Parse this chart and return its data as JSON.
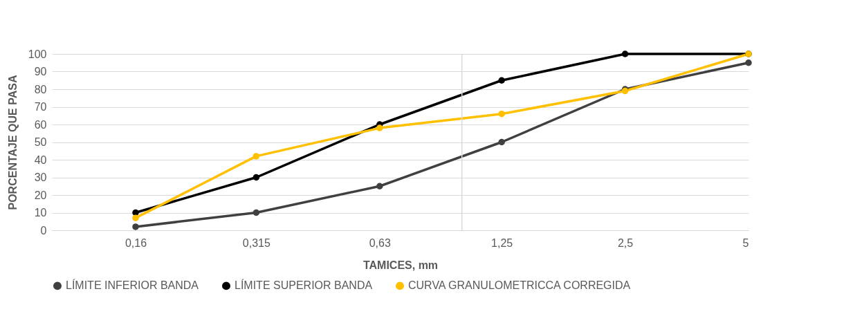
{
  "chart_data": {
    "type": "line",
    "xlabel": "TAMICES, mm",
    "ylabel": "PORCENTAJE QUE PASA",
    "x": [
      0.16,
      0.315,
      0.63,
      1.25,
      2.5,
      5
    ],
    "log": "x",
    "xlim": [
      0.1,
      5
    ],
    "xticks": [
      {
        "value": 0.16,
        "label": "0,16"
      },
      {
        "value": 0.315,
        "label": "0,315"
      },
      {
        "value": 0.63,
        "label": "0,63"
      },
      {
        "value": 1.25,
        "label": "1,25"
      },
      {
        "value": 2.5,
        "label": "2,5"
      },
      5
    ],
    "ylim": [
      0,
      100
    ],
    "yticks": [
      0,
      10,
      20,
      30,
      40,
      50,
      60,
      70,
      80,
      90,
      100
    ],
    "grid": "y",
    "legend": "bottom",
    "marker": "circle",
    "line_style": "solid",
    "ref_lines": [
      {
        "axis": "x",
        "value": 1,
        "color": "#d9d9d9"
      }
    ],
    "series": [
      {
        "name": "LÍMITE INFERIOR BANDA",
        "color": "#404040",
        "values": [
          2,
          10,
          25,
          50,
          80,
          95
        ]
      },
      {
        "name": "LÍMITE SUPERIOR BANDA",
        "color": "#000000",
        "values": [
          10,
          30,
          60,
          85,
          100,
          100
        ]
      },
      {
        "name": "CURVA GRANULOMETRICCA CORREGIDA",
        "color": "#ffc000",
        "values": [
          7,
          42,
          58,
          66,
          79,
          100
        ]
      }
    ]
  }
}
